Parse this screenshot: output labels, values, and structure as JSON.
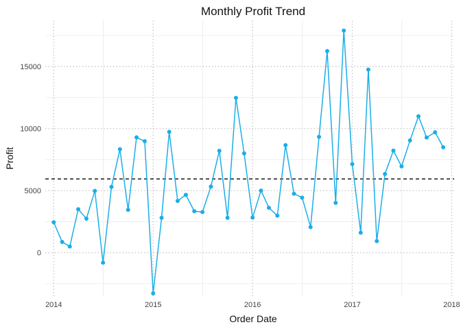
{
  "chart_data": {
    "type": "line",
    "title": "Monthly Profit Trend",
    "xlabel": "Order Date",
    "ylabel": "Profit",
    "x_tick_labels": [
      "2014",
      "2015",
      "2016",
      "2017",
      "2018"
    ],
    "y_tick_labels": [
      "0",
      "5000",
      "10000",
      "15000"
    ],
    "y_ticks": [
      0,
      5000,
      10000,
      15000
    ],
    "ylim": [
      -3500,
      18700
    ],
    "xlim": [
      "2013-12-01",
      "2018-01-10"
    ],
    "reference_line": {
      "y": 5940,
      "style": "dashed"
    },
    "grid": true,
    "colors": {
      "series": "#1aaee8",
      "reference": "#000000",
      "grid_major": "#c9c9c9",
      "grid_minor": "#ededed"
    },
    "series": [
      {
        "x": [
          "2014-01-01",
          "2014-02-01",
          "2014-03-01",
          "2014-04-01",
          "2014-05-01",
          "2014-06-01",
          "2014-07-01",
          "2014-08-01",
          "2014-09-01",
          "2014-10-01",
          "2014-11-01",
          "2014-12-01",
          "2015-01-01",
          "2015-02-01",
          "2015-03-01",
          "2015-04-01",
          "2015-05-01",
          "2015-06-01",
          "2015-07-01",
          "2015-08-01",
          "2015-09-01",
          "2015-10-01",
          "2015-11-01",
          "2015-12-01",
          "2016-01-01",
          "2016-02-01",
          "2016-03-01",
          "2016-04-01",
          "2016-05-01",
          "2016-06-01",
          "2016-07-01",
          "2016-08-01",
          "2016-09-01",
          "2016-10-01",
          "2016-11-01",
          "2016-12-01",
          "2017-01-01",
          "2017-02-01",
          "2017-03-01",
          "2017-04-01",
          "2017-05-01",
          "2017-06-01",
          "2017-07-01",
          "2017-08-01",
          "2017-09-01",
          "2017-10-01",
          "2017-11-01",
          "2017-12-01"
        ],
        "values": [
          2450,
          860,
          500,
          3500,
          2740,
          4980,
          -810,
          5300,
          8330,
          3450,
          9290,
          8980,
          -3280,
          2810,
          9730,
          4170,
          4660,
          3340,
          3270,
          5320,
          8210,
          2810,
          12470,
          8000,
          2820,
          5000,
          3620,
          2980,
          8660,
          4750,
          4430,
          2060,
          9330,
          16240,
          4010,
          17890,
          7140,
          1610,
          14750,
          930,
          6340,
          8220,
          6950,
          9040,
          10990,
          9280,
          9700,
          8490
        ]
      }
    ]
  }
}
